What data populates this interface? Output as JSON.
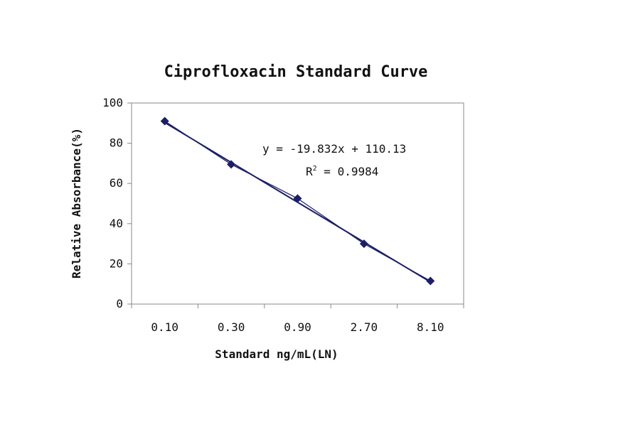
{
  "chart_data": {
    "type": "scatter",
    "title": "Ciprofloxacin Standard Curve",
    "xlabel": "Standard ng/mL(LN)",
    "ylabel": "Relative Absorbance(%)",
    "categories": [
      "0.10",
      "0.30",
      "0.90",
      "2.70",
      "8.10"
    ],
    "series": [
      {
        "values": [
          91,
          69.5,
          52.5,
          30,
          11.5
        ]
      }
    ],
    "trendline": {
      "slope": -19.832,
      "intercept": 110.13
    },
    "equation": "y = -19.832x + 110.13",
    "r2_prefix": "R",
    "r2_sup": "2",
    "r2_value": " = 0.9984",
    "ylim": [
      0,
      100
    ],
    "yticks": [
      "0",
      "20",
      "40",
      "60",
      "80",
      "100"
    ],
    "grid": false,
    "legend": "none",
    "colors": {
      "series": "#1c1f66",
      "axis": "#888888"
    }
  }
}
